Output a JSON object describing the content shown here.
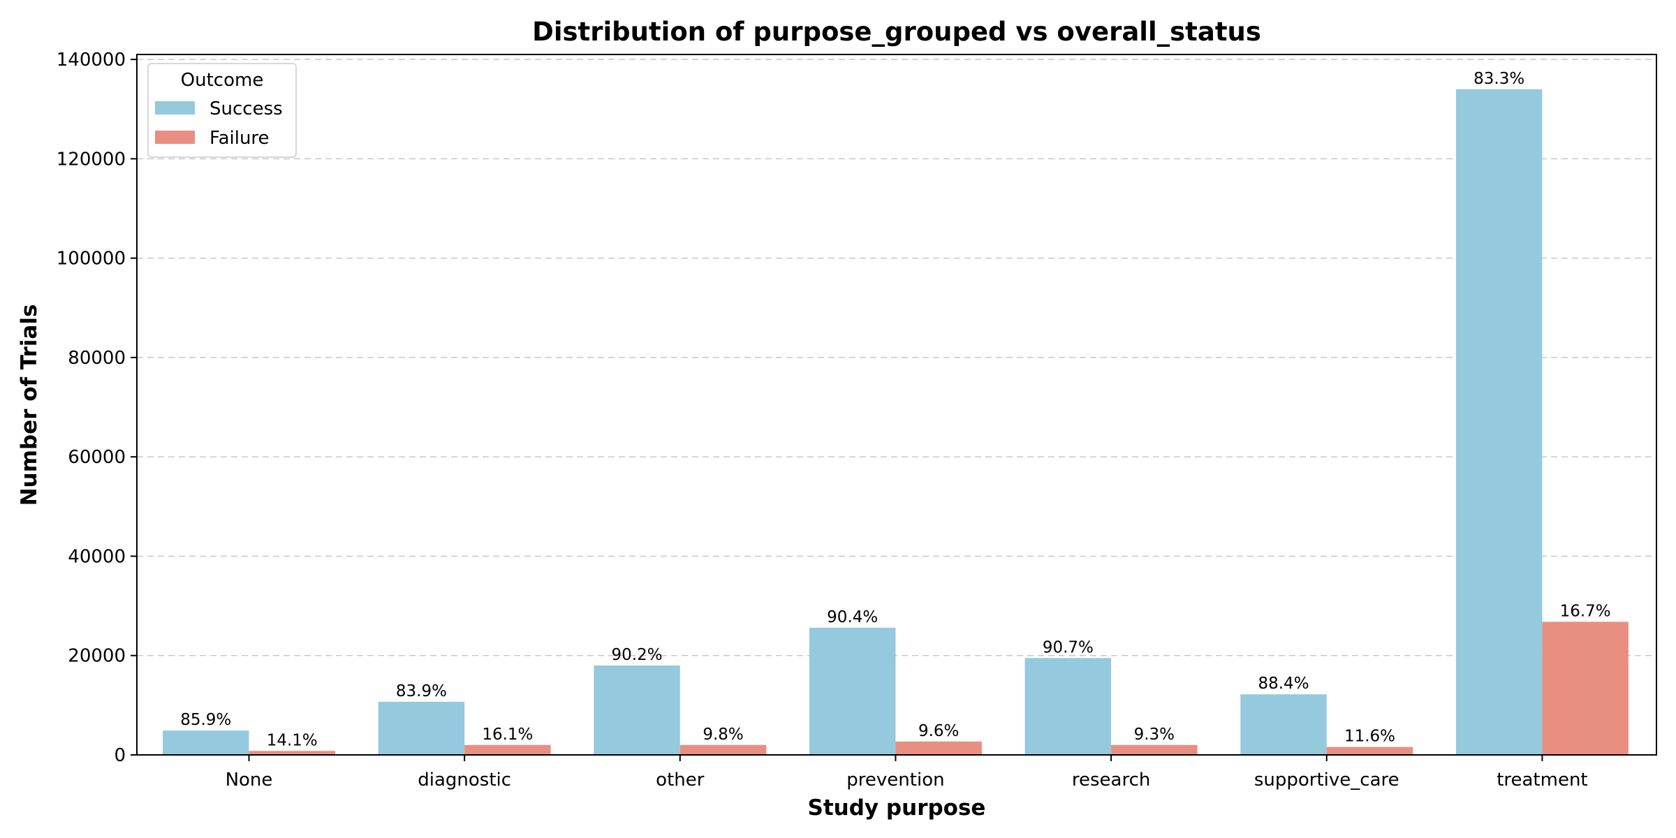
{
  "chart_data": {
    "type": "bar",
    "title": "Distribution of purpose_grouped vs overall_status",
    "xlabel": "Study purpose",
    "ylabel": "Number of Trials",
    "categories": [
      "None",
      "diagnostic",
      "other",
      "prevention",
      "research",
      "supportive_care",
      "treatment"
    ],
    "series": [
      {
        "name": "Success",
        "color": "#95c9de",
        "values": [
          4900,
          10700,
          18000,
          25600,
          19500,
          12200,
          134000
        ],
        "labels": [
          "85.9%",
          "83.9%",
          "90.2%",
          "90.4%",
          "90.7%",
          "88.4%",
          "83.3%"
        ]
      },
      {
        "name": "Failure",
        "color": "#e88f82",
        "values": [
          800,
          2000,
          2000,
          2700,
          2000,
          1600,
          26800
        ],
        "labels": [
          "14.1%",
          "16.1%",
          "9.8%",
          "9.6%",
          "9.3%",
          "11.6%",
          "16.7%"
        ]
      }
    ],
    "ylim": [
      0,
      141000
    ],
    "yticks": [
      0,
      20000,
      40000,
      60000,
      80000,
      100000,
      120000,
      140000
    ],
    "grid": true,
    "legend": {
      "title": "Outcome",
      "placement": "top-left"
    }
  }
}
